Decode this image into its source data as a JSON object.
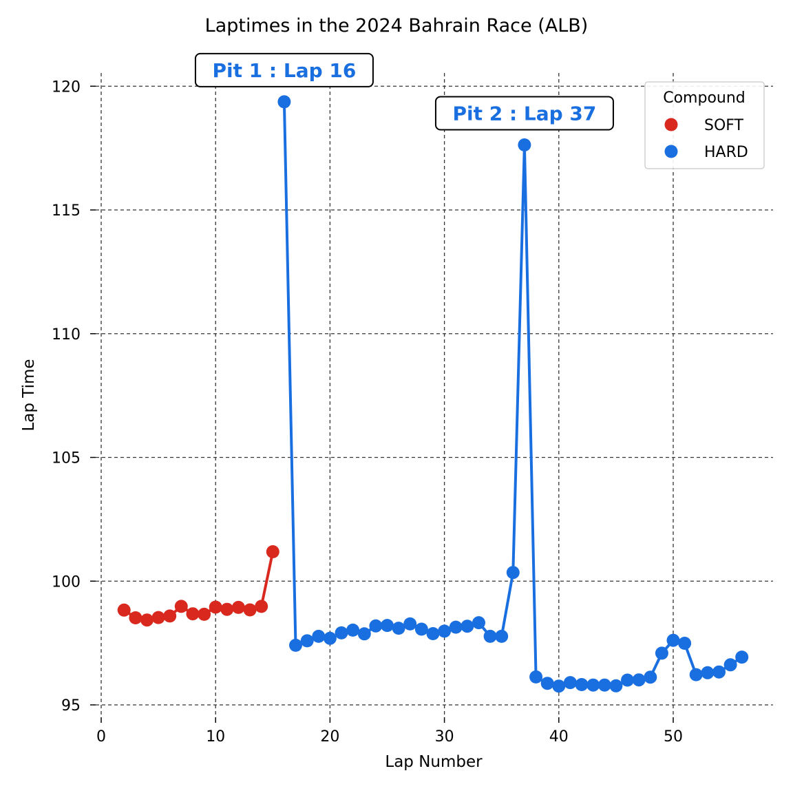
{
  "colors": {
    "SOFT": "#d9281e",
    "HARD": "#1a6fe0"
  },
  "chart_data": {
    "type": "line",
    "title": "Laptimes in the 2024 Bahrain Race (ALB)",
    "xlabel": "Lap Number",
    "ylabel": "Lap Time",
    "xlim": [
      0,
      58.5
    ],
    "ylim": [
      94.5,
      120.5
    ],
    "xticks": [
      0,
      10,
      20,
      30,
      40,
      50
    ],
    "yticks": [
      95,
      100,
      105,
      110,
      115,
      120
    ],
    "grid": true,
    "legend": {
      "title": "Compound",
      "placement": "top-right",
      "entries": [
        "SOFT",
        "HARD"
      ]
    },
    "series": [
      {
        "name": "SOFT",
        "x": [
          2,
          3,
          4,
          5,
          6,
          7,
          8,
          9,
          10,
          11,
          12,
          13,
          14,
          15
        ],
        "y": [
          98.83,
          98.52,
          98.43,
          98.53,
          98.59,
          98.98,
          98.68,
          98.66,
          98.95,
          98.86,
          98.94,
          98.84,
          98.98,
          101.19
        ]
      },
      {
        "name": "HARD",
        "x": [
          16,
          17,
          18,
          19,
          20,
          21,
          22,
          23,
          24,
          25,
          26,
          27,
          28,
          29,
          30,
          31,
          32,
          33,
          34,
          35,
          36,
          37,
          38,
          39,
          40,
          41,
          42,
          43,
          44,
          45,
          46,
          47,
          48,
          49,
          50,
          51,
          52,
          53,
          54,
          55,
          56
        ],
        "y": [
          119.37,
          97.41,
          97.59,
          97.77,
          97.69,
          97.91,
          98.02,
          97.87,
          98.19,
          98.21,
          98.1,
          98.27,
          98.06,
          97.88,
          97.98,
          98.14,
          98.18,
          98.32,
          97.77,
          97.77,
          100.35,
          117.63,
          96.13,
          95.87,
          95.76,
          95.9,
          95.82,
          95.8,
          95.8,
          95.77,
          96.0,
          96.01,
          96.12,
          97.09,
          97.61,
          97.49,
          96.22,
          96.3,
          96.33,
          96.62,
          96.93
        ]
      }
    ],
    "annotations": [
      {
        "text": "Pit 1 : Lap 16",
        "x": 16,
        "y": 119.37
      },
      {
        "text": "Pit 2 : Lap 37",
        "x": 37,
        "y": 117.63
      }
    ]
  }
}
